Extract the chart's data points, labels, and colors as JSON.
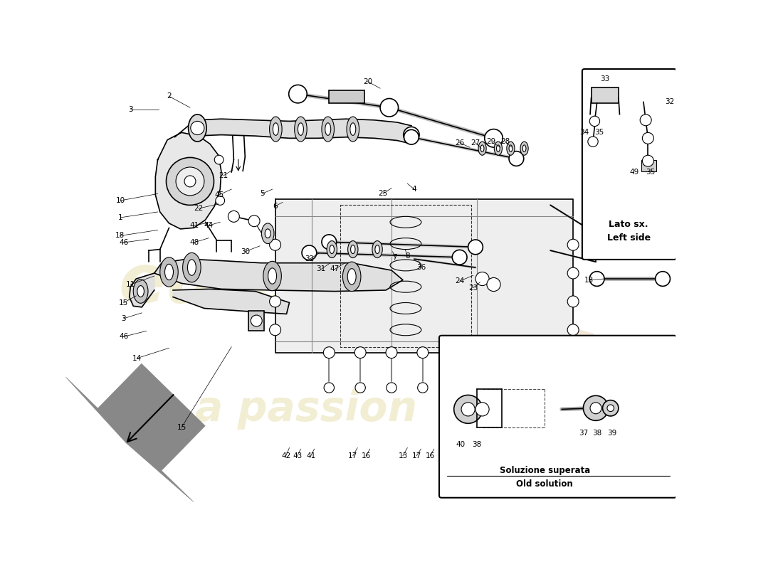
{
  "bg_color": "#ffffff",
  "line_color": "#000000",
  "watermark_color": "#d4c870",
  "watermark_alpha": 0.3,
  "box1_label_line1": "Lato sx.",
  "box1_label_line2": "Left side",
  "box2_label_line1": "Soluzione superata",
  "box2_label_line2": "Old solution"
}
